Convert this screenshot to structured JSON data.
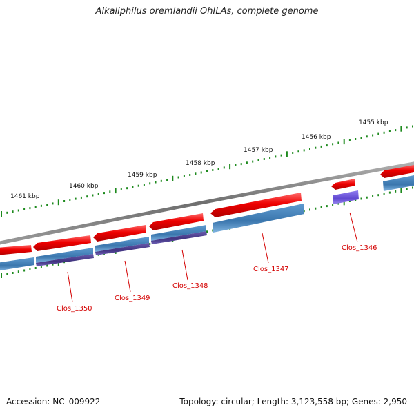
{
  "title": "Alkaliphilus oremlandii OhILAs, complete genome",
  "footer": {
    "accession": "Accession: NC_009922",
    "summary": "Topology: circular; Length: 3,123,558 bp; Genes: 2,950"
  },
  "kbp_labels": [
    "1461 kbp",
    "1460 kbp",
    "1459 kbp",
    "1458 kbp",
    "1457 kbp",
    "1456 kbp",
    "1455 kbp"
  ],
  "genes": [
    "Clos_1350",
    "Clos_1349",
    "Clos_1348",
    "Clos_1347",
    "Clos_1346"
  ],
  "colors": {
    "backbone": "#7a7a7a",
    "gene_red": "#e8000b",
    "cds_blue": "#3f7fb8",
    "cds_purple": "#4b3d8f",
    "cds_violet": "#6d59d6",
    "tick_green": "#1e8a1e",
    "label_red": "#d40000"
  }
}
